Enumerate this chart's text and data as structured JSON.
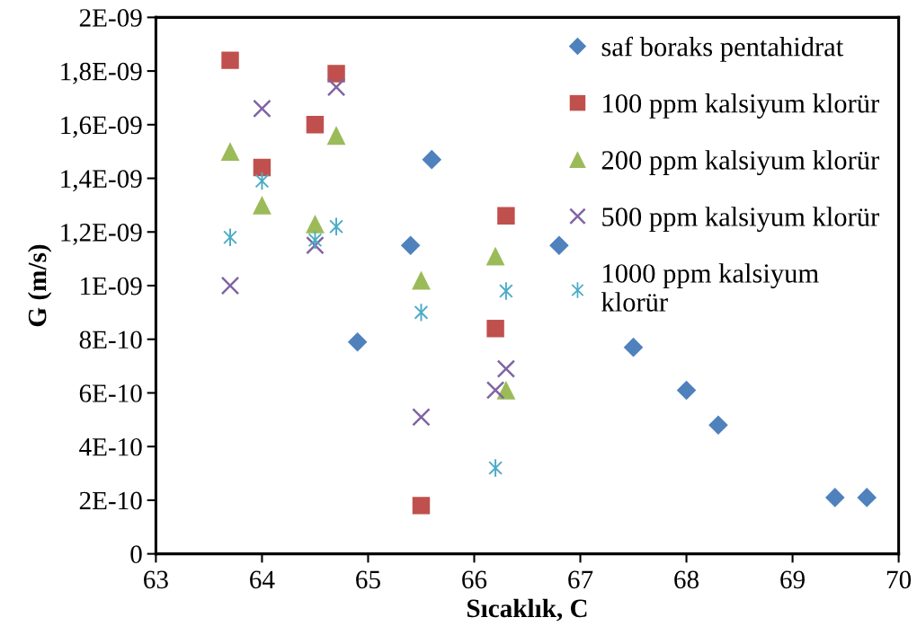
{
  "chart_data": {
    "type": "scatter",
    "xlabel": "Sıcaklık, C",
    "ylabel": "G (m/s)",
    "xlim": [
      63,
      70
    ],
    "xticks": [
      63,
      64,
      65,
      66,
      67,
      68,
      69,
      70
    ],
    "ylim": [
      0,
      2e-09
    ],
    "yticks": [
      0,
      {
        "value": 2e-10,
        "label": "2E-10"
      },
      {
        "value": 4e-10,
        "label": "4E-10"
      },
      {
        "value": 6e-10,
        "label": "6E-10"
      },
      {
        "value": 8e-10,
        "label": "8E-10"
      },
      {
        "value": 1e-09,
        "label": "1E-09"
      },
      {
        "value": 1.2e-09,
        "label": "1,2E-09"
      },
      {
        "value": 1.4e-09,
        "label": "1,4E-09"
      },
      {
        "value": 1.6e-09,
        "label": "1,6E-09"
      },
      {
        "value": 1.8e-09,
        "label": "1,8E-09"
      },
      {
        "value": 2e-09,
        "label": "2E-09"
      }
    ],
    "legend": "top right",
    "series": [
      {
        "name": "saf boraks pentahidrat",
        "color": "#4f81bd",
        "marker": "diamond",
        "x": [
          64.9,
          65.4,
          65.6,
          66.8,
          67.5,
          68.0,
          68.3,
          69.4,
          69.7
        ],
        "values": [
          7.9e-10,
          1.15e-09,
          1.47e-09,
          1.15e-09,
          7.7e-10,
          6.1e-10,
          4.8e-10,
          2.1e-10,
          2.1e-10
        ]
      },
      {
        "name": "100 ppm kalsiyum klorür",
        "color": "#c0504d",
        "marker": "square",
        "x": [
          63.7,
          64.0,
          64.5,
          64.7,
          65.5,
          66.2,
          66.3
        ],
        "values": [
          1.84e-09,
          1.44e-09,
          1.6e-09,
          1.79e-09,
          1.8e-10,
          8.4e-10,
          1.26e-09
        ]
      },
      {
        "name": "200 ppm kalsiyum klorür",
        "color": "#9bbb59",
        "marker": "triangle",
        "x": [
          63.7,
          64.0,
          64.5,
          64.7,
          65.5,
          66.2,
          66.3
        ],
        "values": [
          1.5e-09,
          1.3e-09,
          1.23e-09,
          1.56e-09,
          1.02e-09,
          1.11e-09,
          6.1e-10
        ]
      },
      {
        "name": "500 ppm kalsiyum klorür",
        "color": "#8064a2",
        "marker": "cross",
        "x": [
          63.7,
          64.0,
          64.5,
          64.7,
          65.5,
          66.2,
          66.3
        ],
        "values": [
          1e-09,
          1.66e-09,
          1.15e-09,
          1.74e-09,
          5.1e-10,
          6.1e-10,
          6.9e-10
        ]
      },
      {
        "name": "1000 ppm kalsiyum klorür",
        "color": "#4bacc6",
        "marker": "star",
        "x": [
          63.7,
          64.0,
          64.5,
          64.7,
          65.5,
          66.2,
          66.3
        ],
        "values": [
          1.18e-09,
          1.39e-09,
          1.17e-09,
          1.22e-09,
          9e-10,
          3.2e-10,
          9.8e-10
        ]
      }
    ]
  }
}
